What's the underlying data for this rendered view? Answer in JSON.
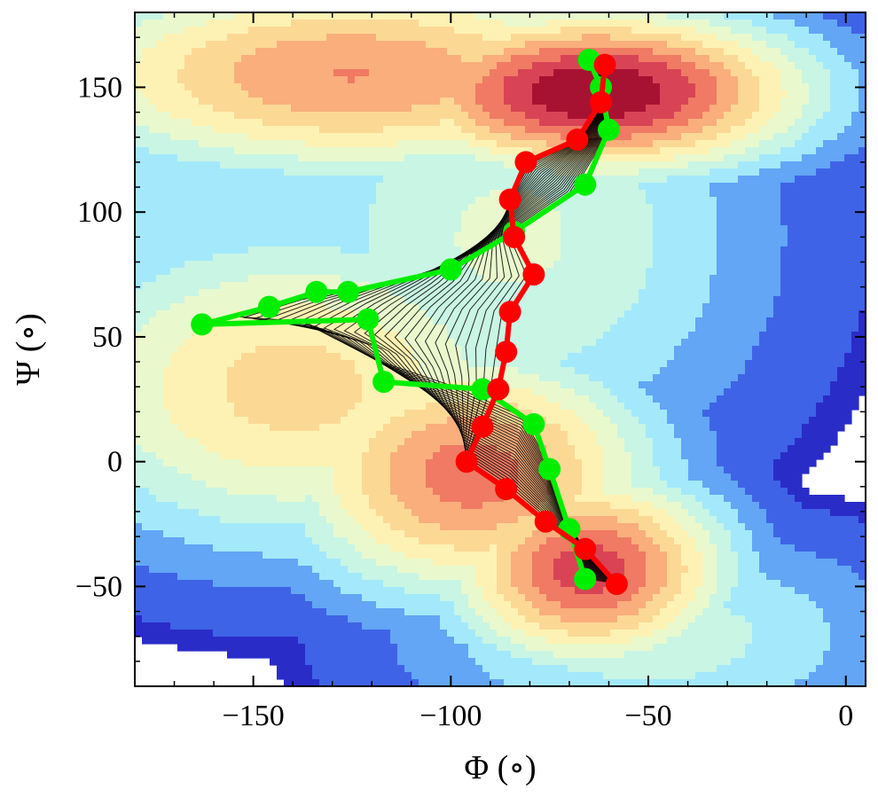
{
  "chart_data": {
    "type": "contour",
    "xlabel": "Φ (∘)",
    "ylabel": "Ψ (∘)",
    "xlim": [
      -180,
      5
    ],
    "ylim": [
      -90,
      180
    ],
    "xticks": [
      -150,
      -100,
      -50,
      0
    ],
    "yticks": [
      -50,
      0,
      50,
      100,
      150
    ],
    "xtick_labels": [
      "−150",
      "−100",
      "−50",
      "0"
    ],
    "ytick_labels": [
      "−50",
      "0",
      "50",
      "100",
      "150"
    ],
    "minor_ticks_x_step": 10,
    "minor_ticks_y_step": 10,
    "grid": false,
    "legend": "none",
    "colormap": [
      "#2a2cc8",
      "#3f63e6",
      "#62a6f5",
      "#a3e9fb",
      "#c9f5e4",
      "#e9f9cd",
      "#fdf2b3",
      "#fcd895",
      "#f9ae7c",
      "#f07a63",
      "#d84456",
      "#a81232"
    ],
    "contour_levels": 12,
    "basins": [
      {
        "x": -63,
        "y": 148,
        "sx": 36,
        "sy": 22,
        "peak": 1.0
      },
      {
        "x": -125,
        "y": 155,
        "sx": 55,
        "sy": 28,
        "peak": 0.7
      },
      {
        "x": -160,
        "y": 160,
        "sx": 22,
        "sy": 12,
        "peak": 0.25
      },
      {
        "x": -65,
        "y": -43,
        "sx": 24,
        "sy": 26,
        "peak": 0.85
      },
      {
        "x": -95,
        "y": -5,
        "sx": 32,
        "sy": 34,
        "peak": 0.75
      },
      {
        "x": -140,
        "y": 30,
        "sx": 45,
        "sy": 45,
        "peak": 0.55
      },
      {
        "x": -85,
        "y": 90,
        "sx": 45,
        "sy": 65,
        "peak": 0.35
      },
      {
        "x": -165,
        "y": 90,
        "sx": 40,
        "sy": 55,
        "peak": 0.25
      },
      {
        "x": -50,
        "y": -70,
        "sx": 45,
        "sy": 30,
        "peak": 0.3
      }
    ],
    "series": [
      {
        "name": "",
        "color": "#00ee00",
        "x": [
          -65,
          -62,
          -60,
          -66,
          -84,
          -100,
          -126,
          -134,
          -146,
          -163,
          -121,
          -117,
          -92,
          -79,
          -75,
          -70,
          -66
        ],
        "y": [
          161,
          150,
          133,
          111,
          92,
          77,
          68,
          68,
          62,
          55,
          57,
          32,
          29,
          15,
          -3,
          -27,
          -47
        ]
      },
      {
        "name": "",
        "color": "#ff0000",
        "x": [
          -61,
          -62,
          -68,
          -81,
          -85,
          -84,
          -79,
          -85,
          -86,
          -88,
          -92,
          -96,
          -86,
          -76,
          -66,
          -58
        ],
        "y": [
          159,
          144,
          129,
          120,
          105,
          90,
          75,
          60,
          44,
          29,
          14,
          0,
          -11,
          -24,
          -35,
          -49
        ]
      }
    ],
    "path_bundle": {
      "color": "#000000",
      "count": 28
    }
  }
}
